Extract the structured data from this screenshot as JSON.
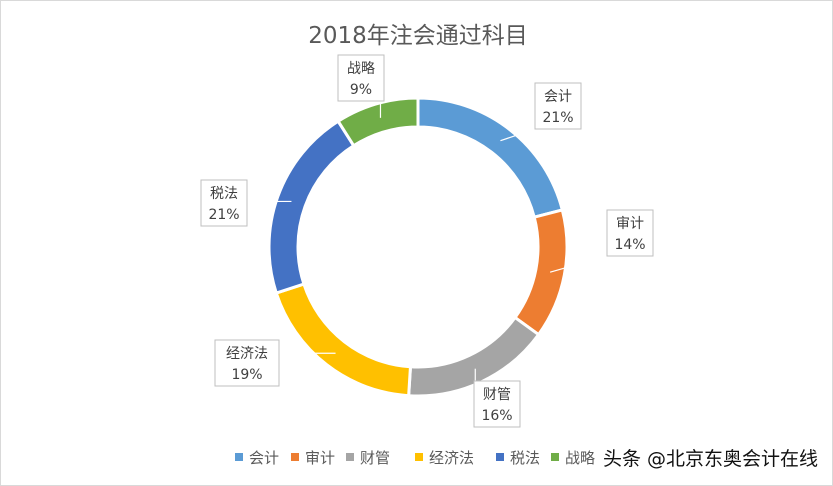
{
  "chart_data": {
    "type": "pie",
    "variant": "donut",
    "title": "2018年注会通过科目",
    "categories": [
      "会计",
      "审计",
      "财管",
      "经济法",
      "税法",
      "战略"
    ],
    "values": [
      21,
      14,
      16,
      19,
      21,
      9
    ],
    "data_labels": [
      "21%",
      "14%",
      "16%",
      "19%",
      "21%",
      "9%"
    ],
    "colors": [
      "#5B9BD5",
      "#ED7D31",
      "#A5A5A5",
      "#FFC000",
      "#4472C4",
      "#70AD47"
    ],
    "legend": "bottom",
    "start_angle": "top, clockwise"
  },
  "watermark": "头条 @北京东奥会计在线"
}
